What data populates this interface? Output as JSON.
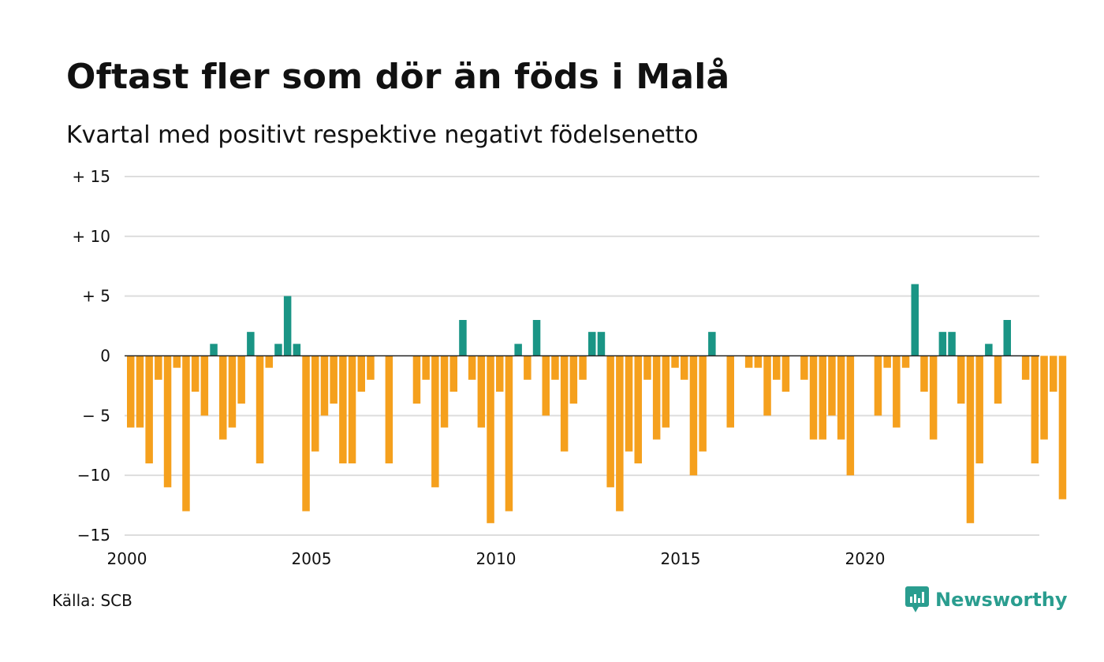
{
  "title": "Oftast fler som dör än föds i Malå",
  "subtitle": "Kvartal med positivt respektive negativt födelsenetto",
  "source": "Källa: SCB",
  "logo_text": "Newsworthy",
  "colors": {
    "positive": "#1a9585",
    "negative": "#f5a01d",
    "grid": "#dddddd",
    "zero": "#222222"
  },
  "chart_data": {
    "type": "bar",
    "title": "Oftast fler som dör än föds i Malå",
    "subtitle": "Kvartal med positivt respektive negativt födelsenetto",
    "ylim": [
      -15,
      15
    ],
    "yticks": [
      {
        "value": 15,
        "label": "+ 15"
      },
      {
        "value": 10,
        "label": "+ 10"
      },
      {
        "value": 5,
        "label": "+  5"
      },
      {
        "value": 0,
        "label": "0"
      },
      {
        "value": -5,
        "label": "− 5"
      },
      {
        "value": -10,
        "label": "−10"
      },
      {
        "value": -15,
        "label": "−15"
      }
    ],
    "xticks": [
      {
        "quarter_index": 0,
        "label": "2000"
      },
      {
        "quarter_index": 20,
        "label": "2005"
      },
      {
        "quarter_index": 40,
        "label": "2010"
      },
      {
        "quarter_index": 60,
        "label": "2015"
      },
      {
        "quarter_index": 80,
        "label": "2020"
      }
    ],
    "start_year": 2000,
    "grid": true,
    "values": [
      -6,
      -6,
      -9,
      -2,
      -11,
      -1,
      -13,
      -3,
      -5,
      1,
      -7,
      -6,
      -4,
      2,
      -9,
      -1,
      1,
      5,
      1,
      -13,
      -8,
      -5,
      -4,
      -9,
      -9,
      -3,
      -2,
      0,
      -9,
      0,
      0,
      -4,
      -2,
      -11,
      -6,
      -3,
      3,
      -2,
      -6,
      -14,
      -3,
      -13,
      1,
      -2,
      3,
      -5,
      -2,
      -8,
      -4,
      -2,
      2,
      2,
      -11,
      -13,
      -8,
      -9,
      -2,
      -7,
      -6,
      -1,
      -2,
      -10,
      -8,
      2,
      0,
      -6,
      0,
      -1,
      -1,
      -5,
      -2,
      -3,
      0,
      -2,
      -7,
      -7,
      -5,
      -7,
      -10,
      0,
      0,
      -5,
      -1,
      -6,
      -1,
      6,
      -3,
      -7,
      2,
      2,
      -4,
      -14,
      -9,
      1,
      -4,
      3,
      0,
      -2,
      -9,
      -7,
      -3,
      -12
    ]
  }
}
